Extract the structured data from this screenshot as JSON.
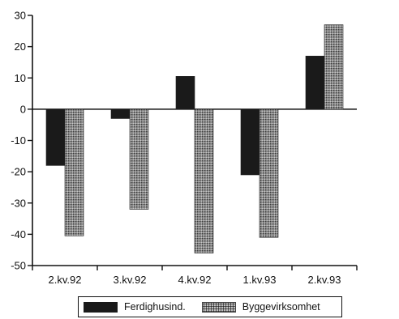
{
  "chart_data": {
    "type": "bar",
    "categories": [
      "2.kv.92",
      "3.kv.92",
      "4.kv.92",
      "1.kv.93",
      "2.kv.93"
    ],
    "series": [
      {
        "name": "Ferdighusind.",
        "values": [
          -18,
          -3,
          10.5,
          -21,
          17
        ],
        "color": "#1a1a1a"
      },
      {
        "name": "Byggevirksomhet",
        "values": [
          -40.5,
          -32,
          -46,
          -41,
          27
        ],
        "color": "#8a8a8a",
        "pattern": "dotted"
      }
    ],
    "yticks": [
      "30",
      "20",
      "10",
      "0",
      "-10",
      "-20",
      "-30",
      "-40",
      "-50"
    ],
    "ylim": [
      -50,
      30
    ],
    "grid": false,
    "legend": "bottom"
  }
}
